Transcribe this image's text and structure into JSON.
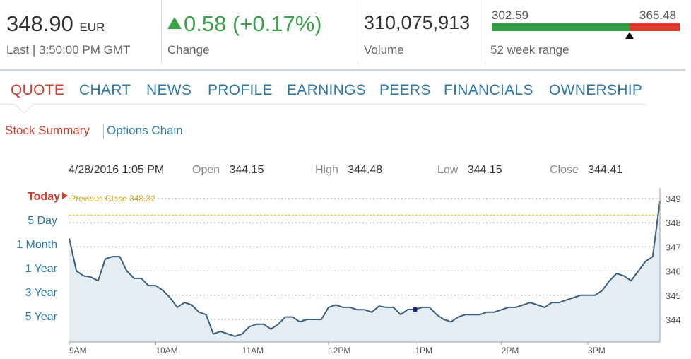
{
  "quote": {
    "price": "348.90",
    "currency": "EUR",
    "last_label": "Last | 3:50:00 PM GMT",
    "change": "0.58 (+0.17%)",
    "change_label": "Change",
    "volume": "310,075,913",
    "volume_label": "Volume",
    "range_low": "302.59",
    "range_high": "365.48",
    "range_label": "52 week range",
    "range_position": 0.73
  },
  "tabs": [
    {
      "label": "QUOTE",
      "active": true
    },
    {
      "label": "CHART"
    },
    {
      "label": "NEWS"
    },
    {
      "label": "PROFILE"
    },
    {
      "label": "EARNINGS"
    },
    {
      "label": "PEERS"
    },
    {
      "label": "FINANCIALS"
    },
    {
      "label": "OWNERSHIP"
    }
  ],
  "subnav": {
    "stock_summary": "Stock Summary",
    "options_chain": "Options Chain"
  },
  "info": {
    "date": "4/28/2016 1:05 PM",
    "open_label": "Open",
    "open": "344.15",
    "high_label": "High",
    "high": "344.48",
    "low_label": "Low",
    "low": "344.15",
    "close_label": "Close",
    "close": "344.41"
  },
  "ranges": [
    "Today",
    "5 Day",
    "1 Month",
    "1 Year",
    "3 Year",
    "5 Year"
  ],
  "colors": {
    "accent": "#cf3d2e",
    "link": "#2b7aaa",
    "up": "#3aa34a",
    "line": "#3b5f80",
    "fill": "#e6edf2",
    "prev_close": "#e8c33c"
  },
  "chart_data": {
    "type": "area",
    "prev_close_label": "Previous Close 348.32",
    "prev_close": 348.32,
    "ylim": [
      343,
      349
    ],
    "yticks": [
      "344",
      "345",
      "346",
      "347",
      "348",
      "349"
    ],
    "xticks": [
      "9AM",
      "10AM",
      "11AM",
      "12PM",
      "1PM",
      "2PM",
      "3PM"
    ],
    "x": [
      "9:00",
      "9:05",
      "9:10",
      "9:15",
      "9:20",
      "9:25",
      "9:30",
      "9:35",
      "9:40",
      "9:45",
      "9:50",
      "9:55",
      "10:00",
      "10:05",
      "10:10",
      "10:15",
      "10:20",
      "10:25",
      "10:30",
      "10:35",
      "10:40",
      "10:45",
      "10:50",
      "10:55",
      "11:00",
      "11:05",
      "11:10",
      "11:15",
      "11:20",
      "11:25",
      "11:30",
      "11:35",
      "11:40",
      "11:45",
      "11:50",
      "11:55",
      "12:00",
      "12:05",
      "12:10",
      "12:15",
      "12:20",
      "12:25",
      "12:30",
      "12:35",
      "12:40",
      "12:45",
      "12:50",
      "12:55",
      "13:00",
      "13:05",
      "13:10",
      "13:15",
      "13:20",
      "13:25",
      "13:30",
      "13:35",
      "13:40",
      "13:45",
      "13:50",
      "13:55",
      "14:00",
      "14:05",
      "14:10",
      "14:15",
      "14:20",
      "14:25",
      "14:30",
      "14:35",
      "14:40",
      "14:45",
      "14:50",
      "14:55",
      "15:00",
      "15:05",
      "15:10",
      "15:15",
      "15:20",
      "15:25",
      "15:30",
      "15:35",
      "15:40",
      "15:45",
      "15:50"
    ],
    "values": [
      347.35,
      346.0,
      345.8,
      345.75,
      345.6,
      346.5,
      346.6,
      346.6,
      346.0,
      345.7,
      345.7,
      345.4,
      345.4,
      345.2,
      344.9,
      344.5,
      344.7,
      344.6,
      344.3,
      344.2,
      343.4,
      343.5,
      343.4,
      343.3,
      343.4,
      343.7,
      343.8,
      343.8,
      343.6,
      343.8,
      344.1,
      344.1,
      343.9,
      344.0,
      344.0,
      344.0,
      344.5,
      344.6,
      344.5,
      344.5,
      344.4,
      344.4,
      344.3,
      344.55,
      344.5,
      344.5,
      344.2,
      344.41,
      344.41,
      344.5,
      344.5,
      344.2,
      344.0,
      343.9,
      344.1,
      344.2,
      344.2,
      344.2,
      344.3,
      344.3,
      344.4,
      344.5,
      344.5,
      344.6,
      344.7,
      344.6,
      344.5,
      344.7,
      344.7,
      344.8,
      344.9,
      345.0,
      345.0,
      345.0,
      345.2,
      345.6,
      345.9,
      345.8,
      345.6,
      346.0,
      346.4,
      346.6,
      348.9
    ],
    "marker_value": 344.41
  }
}
